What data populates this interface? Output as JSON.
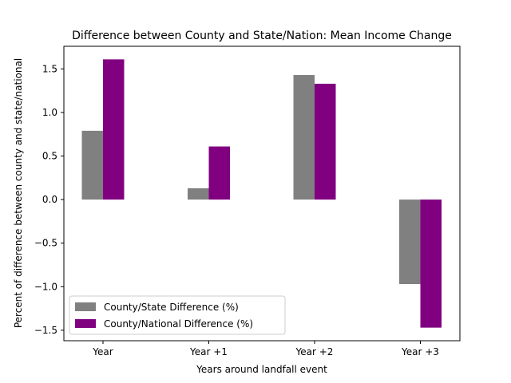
{
  "chart_data": {
    "type": "bar",
    "title": "Difference between County and State/Nation: Mean Income Change",
    "xlabel": "Years around landfall event",
    "ylabel": "Percent of difference between county and state/national",
    "categories": [
      "Year",
      "Year +1",
      "Year +2",
      "Year +3"
    ],
    "series": [
      {
        "name": "County/State Difference (%)",
        "color": "#808080",
        "values": [
          0.79,
          0.13,
          1.43,
          -0.97
        ]
      },
      {
        "name": "County/National Difference (%)",
        "color": "#800080",
        "values": [
          1.61,
          0.61,
          1.33,
          -1.47
        ]
      }
    ],
    "ylim": [
      -1.62,
      1.76
    ],
    "yticks": [
      -1.5,
      -1.0,
      -0.5,
      0.0,
      0.5,
      1.0,
      1.5
    ],
    "ytick_labels": [
      "−1.5",
      "−1.0",
      "−0.5",
      "0.0",
      "0.5",
      "1.0",
      "1.5"
    ],
    "grid": false,
    "legend_position": "lower-left"
  }
}
